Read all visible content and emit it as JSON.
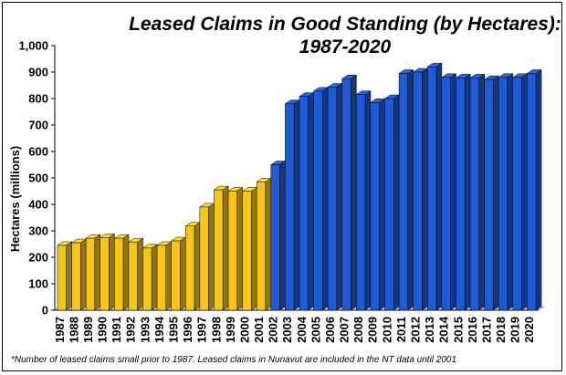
{
  "chart_data": {
    "type": "bar",
    "title_line1": "Leased Claims in Good Standing (by Hectares):",
    "title_line2": "1987-2020",
    "ylabel": "Hectares (millions)",
    "ylim": [
      0,
      1000
    ],
    "yticks": [
      "0",
      "100",
      "200",
      "300",
      "400",
      "500",
      "600",
      "700",
      "800",
      "900",
      "1,000"
    ],
    "ytick_values": [
      0,
      100,
      200,
      300,
      400,
      500,
      600,
      700,
      800,
      900,
      1000
    ],
    "categories": [
      "1987",
      "1988",
      "1989",
      "1990",
      "1991",
      "1992",
      "1993",
      "1994",
      "1995",
      "1996",
      "1997",
      "1998",
      "1999",
      "2000",
      "2001",
      "2002",
      "2003",
      "2004",
      "2005",
      "2006",
      "2007",
      "2008",
      "2009",
      "2010",
      "2011",
      "2012",
      "2013",
      "2014",
      "2015",
      "2016",
      "2017",
      "2018",
      "2019",
      "2020"
    ],
    "values": [
      245,
      255,
      272,
      275,
      272,
      258,
      235,
      245,
      262,
      318,
      390,
      455,
      450,
      450,
      485,
      550,
      780,
      808,
      828,
      843,
      875,
      815,
      785,
      800,
      895,
      900,
      920,
      880,
      878,
      878,
      872,
      880,
      880,
      895
    ],
    "bar_colors": [
      "#f5c518",
      "#f5c518",
      "#f5c518",
      "#f5c518",
      "#f5c518",
      "#f5c518",
      "#f5c518",
      "#f5c518",
      "#f5c518",
      "#f5c518",
      "#f5c518",
      "#f5c518",
      "#f5c518",
      "#f5c518",
      "#f5c518",
      "#1f5bd6",
      "#1f5bd6",
      "#1f5bd6",
      "#1f5bd6",
      "#1f5bd6",
      "#1f5bd6",
      "#1f5bd6",
      "#1f5bd6",
      "#1f5bd6",
      "#1f5bd6",
      "#1f5bd6",
      "#1f5bd6",
      "#1f5bd6",
      "#1f5bd6",
      "#1f5bd6",
      "#1f5bd6",
      "#1f5bd6",
      "#1f5bd6",
      "#1f5bd6"
    ],
    "grid": false,
    "footnote": "*Number of leased claims small prior to 1987. Leased claims in Nunavut are included in the NT data until 2001"
  }
}
